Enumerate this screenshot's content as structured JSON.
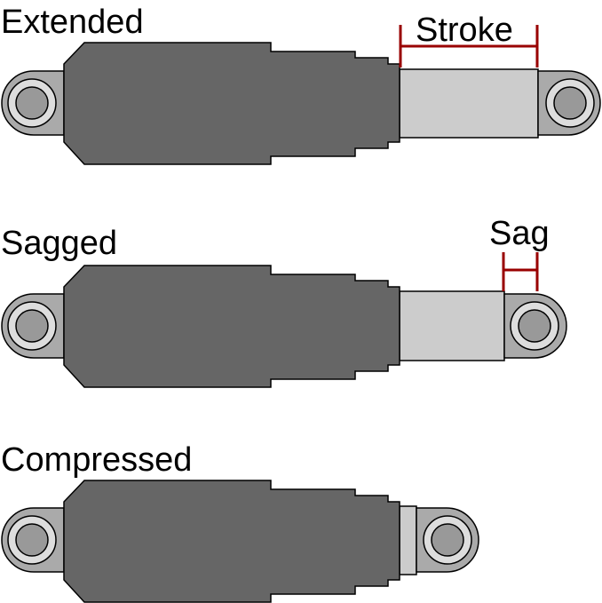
{
  "diagram": {
    "states": [
      {
        "label": "Extended"
      },
      {
        "label": "Sagged"
      },
      {
        "label": "Compressed"
      }
    ],
    "dimensions": {
      "stroke_label": "Stroke",
      "sag_label": "Sag"
    },
    "colors": {
      "body": "#666666",
      "shaft": "#cccccc",
      "eye_outer": "#aaaaaa",
      "eye_inner": "#dddddd",
      "eye_core": "#999999",
      "outline": "#000000",
      "dimension": "#990000",
      "background": "#ffffff"
    }
  }
}
